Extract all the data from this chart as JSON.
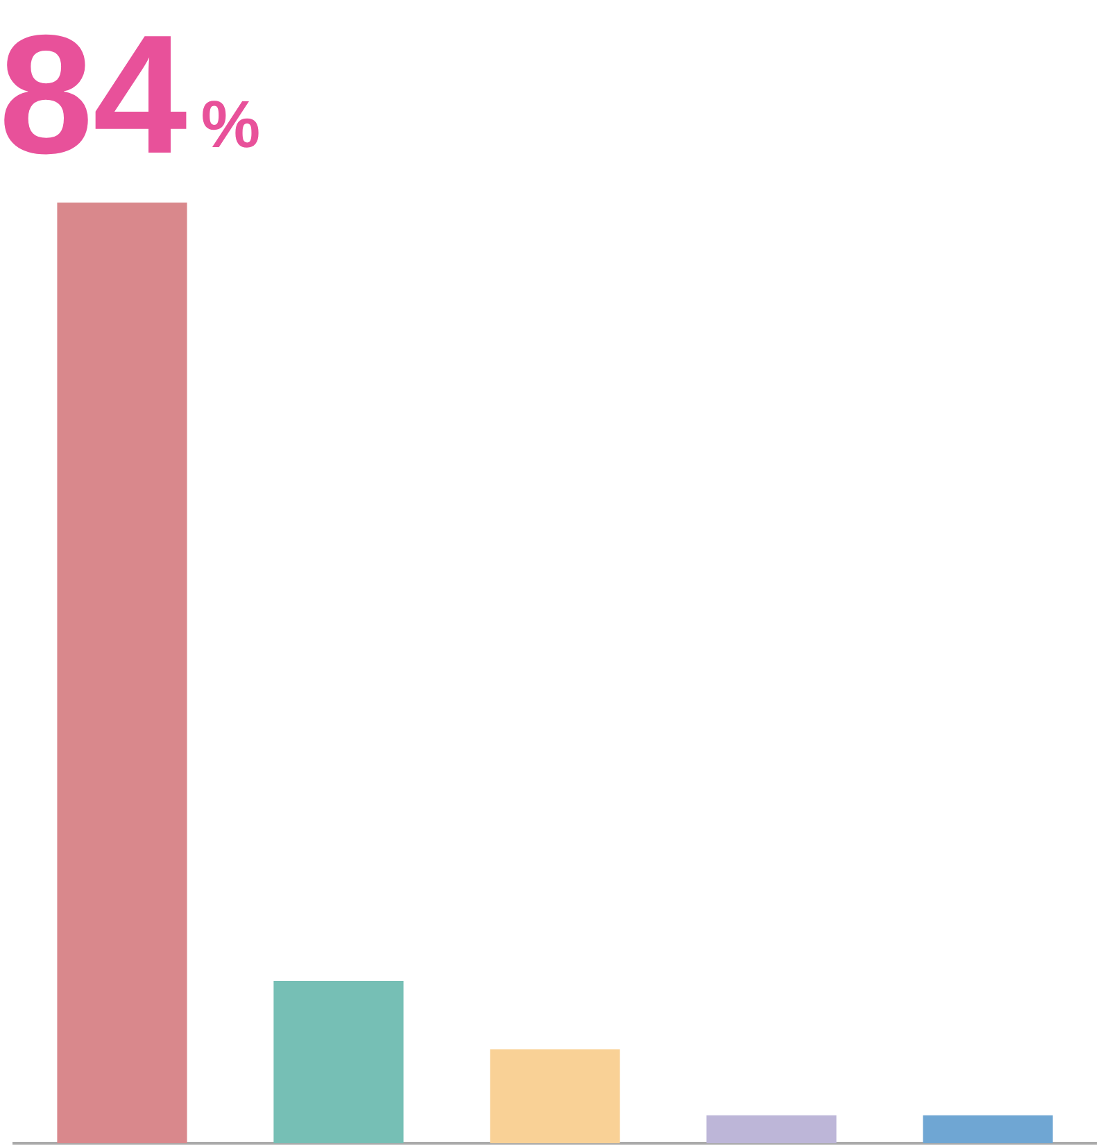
{
  "chart_data": {
    "type": "bar",
    "categories": [
      null,
      null,
      null,
      null,
      null
    ],
    "values": [
      84,
      14.5,
      8.4,
      2.5,
      2.5
    ],
    "colors": [
      "#d9888c",
      "#76bfb5",
      "#f9d196",
      "#bdb6d8",
      "#6fa6d3"
    ],
    "value_labels": [
      "84%",
      null,
      null,
      null,
      null
    ],
    "grid": false,
    "legend": false
  }
}
